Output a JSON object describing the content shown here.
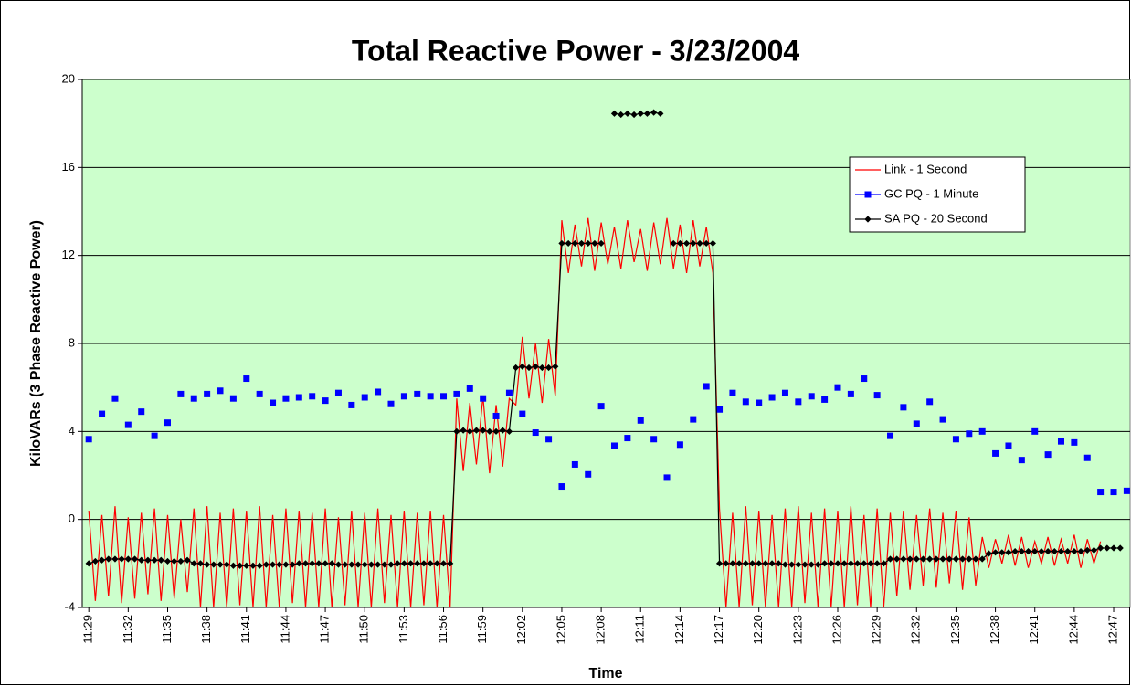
{
  "chart_data": {
    "type": "line",
    "title": "Total Reactive Power - 3/23/2004",
    "x_label": "Time",
    "y_label": "KiloVARs (3 Phase Reactive Power)",
    "legend": "upper right",
    "grid": true,
    "background": "#ccffcc",
    "xlim": [
      688.5,
      768.25
    ],
    "ylim": [
      -4,
      20
    ],
    "yticks": [
      -4,
      0,
      4,
      8,
      12,
      16,
      20
    ],
    "xticks": [
      {
        "value": 689,
        "label": "11:29"
      },
      {
        "value": 692,
        "label": "11:32"
      },
      {
        "value": 695,
        "label": "11:35"
      },
      {
        "value": 698,
        "label": "11:38"
      },
      {
        "value": 701,
        "label": "11:41"
      },
      {
        "value": 704,
        "label": "11:44"
      },
      {
        "value": 707,
        "label": "11:47"
      },
      {
        "value": 710,
        "label": "11:50"
      },
      {
        "value": 713,
        "label": "11:53"
      },
      {
        "value": 716,
        "label": "11:56"
      },
      {
        "value": 719,
        "label": "11:59"
      },
      {
        "value": 722,
        "label": "12:02"
      },
      {
        "value": 725,
        "label": "12:05"
      },
      {
        "value": 728,
        "label": "12:08"
      },
      {
        "value": 731,
        "label": "12:11"
      },
      {
        "value": 734,
        "label": "12:14"
      },
      {
        "value": 737,
        "label": "12:17"
      },
      {
        "value": 740,
        "label": "12:20"
      },
      {
        "value": 743,
        "label": "12:23"
      },
      {
        "value": 746,
        "label": "12:26"
      },
      {
        "value": 749,
        "label": "12:29"
      },
      {
        "value": 752,
        "label": "12:32"
      },
      {
        "value": 755,
        "label": "12:35"
      },
      {
        "value": 758,
        "label": "12:38"
      },
      {
        "value": 761,
        "label": "12:41"
      },
      {
        "value": 764,
        "label": "12:44"
      },
      {
        "value": 767,
        "label": "12:47"
      }
    ],
    "x": [
      689,
      689.5,
      690,
      690.5,
      691,
      691.5,
      692,
      692.5,
      693,
      693.5,
      694,
      694.5,
      695,
      695.5,
      696,
      696.5,
      697,
      697.5,
      698,
      698.5,
      699,
      699.5,
      700,
      700.5,
      701,
      701.5,
      702,
      702.5,
      703,
      703.5,
      704,
      704.5,
      705,
      705.5,
      706,
      706.5,
      707,
      707.5,
      708,
      708.5,
      709,
      709.5,
      710,
      710.5,
      711,
      711.5,
      712,
      712.5,
      713,
      713.5,
      714,
      714.5,
      715,
      715.5,
      716,
      716.5,
      717,
      717.5,
      718,
      718.5,
      719,
      719.5,
      720,
      720.5,
      721,
      721.5,
      722,
      722.5,
      723,
      723.5,
      724,
      724.5,
      725,
      725.5,
      726,
      726.5,
      727,
      727.5,
      728,
      728.5,
      729,
      729.5,
      730,
      730.5,
      731,
      731.5,
      732,
      732.5,
      733,
      733.5,
      734,
      734.5,
      735,
      735.5,
      736,
      736.5,
      737,
      737.5,
      738,
      738.5,
      739,
      739.5,
      740,
      740.5,
      741,
      741.5,
      742,
      742.5,
      743,
      743.5,
      744,
      744.5,
      745,
      745.5,
      746,
      746.5,
      747,
      747.5,
      748,
      748.5,
      749,
      749.5,
      750,
      750.5,
      751,
      751.5,
      752,
      752.5,
      753,
      753.5,
      754,
      754.5,
      755,
      755.5,
      756,
      756.5,
      757,
      757.5,
      758,
      758.5,
      759,
      759.5,
      760,
      760.5,
      761,
      761.5,
      762,
      762.5,
      763,
      763.5,
      764,
      764.5,
      765,
      765.5,
      766,
      766.5,
      767,
      767.5,
      768
    ],
    "series": [
      {
        "name": "Link - 1 Second",
        "color": "#ff0000",
        "kind": "line",
        "values": [
          0.4,
          -3.7,
          0.2,
          -3.5,
          0.6,
          -3.8,
          0.1,
          -3.6,
          0.3,
          -3.4,
          0.5,
          -3.7,
          0.2,
          -3.6,
          0.0,
          -3.3,
          0.5,
          -4,
          0.6,
          -4,
          0.3,
          -4,
          0.5,
          -3.9,
          0.4,
          -4,
          0.6,
          -4,
          0.2,
          -4,
          0.5,
          -3.8,
          0.4,
          -4,
          0.3,
          -4,
          0.5,
          -4,
          0.1,
          -3.9,
          0.4,
          -4,
          0.3,
          -4,
          0.5,
          -3.8,
          0.2,
          -4,
          0.4,
          -4,
          0.3,
          -3.9,
          0.4,
          -4,
          0.2,
          -4,
          5.5,
          2.2,
          5.3,
          2.5,
          5.6,
          2.1,
          5.2,
          2.4,
          5.5,
          5.2,
          8.3,
          5.5,
          8.0,
          5.3,
          8.2,
          5.6,
          13.6,
          11.2,
          13.4,
          11.5,
          13.7,
          11.3,
          13.5,
          11.6,
          13.3,
          11.4,
          13.6,
          11.7,
          13.2,
          11.3,
          13.5,
          11.6,
          13.7,
          11.4,
          13.4,
          11.2,
          13.6,
          11.5,
          13.3,
          11.2,
          0.5,
          -4,
          0.3,
          -4,
          0.6,
          -3.9,
          0.4,
          -4,
          0.2,
          -4,
          0.5,
          -4,
          0.6,
          -3.8,
          0.3,
          -4,
          0.5,
          -4,
          0.4,
          -4,
          0.6,
          -3.9,
          0.2,
          -4,
          0.5,
          -4,
          0.3,
          -3.5,
          0.4,
          -3.2,
          0.2,
          -3.0,
          0.5,
          -3.1,
          0.3,
          -2.9,
          0.4,
          -3.2,
          0.1,
          -3.0,
          -0.8,
          -2.2,
          -0.9,
          -2.0,
          -0.7,
          -2.1,
          -0.8,
          -2.2,
          -1.0,
          -2.0,
          -0.8,
          -2.1,
          -0.9,
          -2.0,
          -0.7,
          -2.2,
          -0.9,
          -2.0,
          -1.0,
          null,
          null,
          null,
          null
        ]
      },
      {
        "name": "GC PQ - 1 Minute",
        "color": "#0000ff",
        "kind": "scatter",
        "x": [
          689,
          690,
          691,
          692,
          693,
          694,
          695,
          696,
          697,
          698,
          699,
          700,
          701,
          702,
          703,
          704,
          705,
          706,
          707,
          708,
          709,
          710,
          711,
          712,
          713,
          714,
          715,
          716,
          717,
          718,
          719,
          720,
          721,
          722,
          723,
          724,
          725,
          726,
          727,
          728,
          729,
          730,
          731,
          732,
          733,
          734,
          735,
          736,
          737,
          738,
          739,
          740,
          741,
          742,
          743,
          744,
          745,
          746,
          747,
          748,
          749,
          750,
          751,
          752,
          753,
          754,
          755,
          756,
          757,
          758,
          759,
          760,
          761,
          762,
          763,
          764,
          765,
          766,
          767,
          768
        ],
        "values": [
          3.65,
          4.8,
          5.5,
          4.3,
          4.9,
          3.8,
          4.4,
          5.7,
          5.5,
          5.7,
          5.85,
          5.5,
          6.4,
          5.7,
          5.3,
          5.5,
          5.55,
          5.6,
          5.4,
          5.75,
          5.2,
          5.55,
          5.8,
          5.25,
          5.6,
          5.7,
          5.6,
          5.6,
          5.7,
          5.95,
          5.5,
          4.7,
          5.75,
          4.8,
          3.95,
          3.65,
          1.5,
          2.5,
          2.05,
          5.15,
          3.35,
          3.7,
          4.5,
          3.65,
          1.9,
          3.4,
          4.55,
          6.05,
          5.0,
          5.75,
          5.35,
          5.3,
          5.55,
          5.75,
          5.35,
          5.6,
          5.45,
          6.0,
          5.7,
          6.4,
          5.65,
          3.8,
          5.1,
          4.35,
          5.35,
          4.55,
          3.65,
          3.9,
          4.0,
          3.0,
          3.35,
          2.7,
          4.0,
          2.95,
          3.55,
          3.5,
          2.8,
          1.25,
          1.25,
          1.3
        ]
      },
      {
        "name": "SA PQ - 20 Second",
        "color": "#000000",
        "kind": "line-marker",
        "values": [
          -2.0,
          -1.9,
          -1.85,
          -1.8,
          -1.8,
          -1.8,
          -1.8,
          -1.8,
          -1.85,
          -1.85,
          -1.85,
          -1.85,
          -1.9,
          -1.9,
          -1.9,
          -1.85,
          -2.0,
          -2.0,
          -2.05,
          -2.05,
          -2.05,
          -2.05,
          -2.1,
          -2.1,
          -2.1,
          -2.1,
          -2.1,
          -2.05,
          -2.05,
          -2.05,
          -2.05,
          -2.05,
          -2.0,
          -2.0,
          -2.0,
          -2.0,
          -2.0,
          -2.0,
          -2.05,
          -2.05,
          -2.05,
          -2.05,
          -2.05,
          -2.05,
          -2.05,
          -2.05,
          -2.05,
          -2.0,
          -2.0,
          -2.0,
          -2.0,
          -2.0,
          -2.0,
          -2.0,
          -2.0,
          -2.0,
          4.0,
          4.05,
          4.0,
          4.05,
          4.05,
          4.0,
          4.0,
          4.05,
          4.0,
          6.9,
          6.95,
          6.9,
          6.95,
          6.9,
          6.9,
          6.95,
          12.55,
          12.55,
          12.55,
          12.55,
          12.55,
          12.55,
          12.55,
          null,
          18.45,
          18.4,
          18.45,
          18.4,
          18.45,
          18.45,
          18.5,
          18.45,
          null,
          12.55,
          12.55,
          12.55,
          12.55,
          12.55,
          12.55,
          12.55,
          -2.0,
          -2.0,
          -2.0,
          -2.0,
          -2.0,
          -2.0,
          -2.0,
          -2.0,
          -2.0,
          -2.0,
          -2.05,
          -2.05,
          -2.05,
          -2.05,
          -2.05,
          -2.05,
          -2.0,
          -2.0,
          -2.0,
          -2.0,
          -2.0,
          -2.0,
          -2.0,
          -2.0,
          -2.0,
          -2.0,
          -1.8,
          -1.8,
          -1.8,
          -1.8,
          -1.8,
          -1.8,
          -1.8,
          -1.8,
          -1.8,
          -1.8,
          -1.8,
          -1.8,
          -1.8,
          -1.8,
          -1.8,
          -1.55,
          -1.5,
          -1.5,
          -1.5,
          -1.45,
          -1.45,
          -1.45,
          -1.45,
          -1.45,
          -1.45,
          -1.45,
          -1.45,
          -1.45,
          -1.45,
          -1.45,
          -1.4,
          -1.4,
          -1.3,
          -1.3,
          -1.3,
          -1.3,
          null
        ]
      }
    ]
  }
}
